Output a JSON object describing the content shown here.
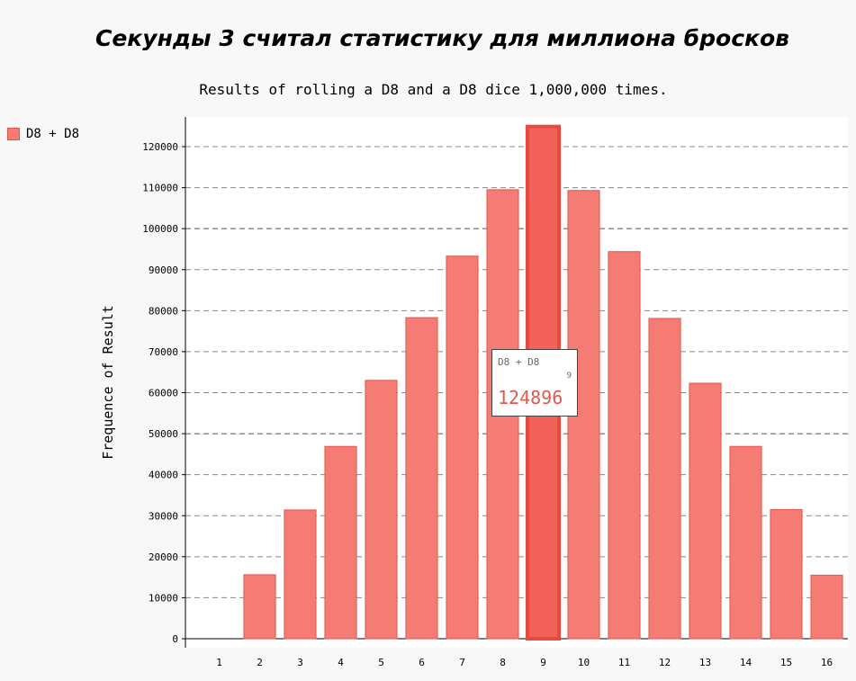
{
  "chart_data": {
    "type": "bar",
    "title": "Секунды 3 считал статистику для миллиона бросков",
    "subtitle": "Results of rolling a D8 and a D8 dice 1,000,000 times.",
    "xlabel": "",
    "ylabel": "Frequence of Result",
    "categories": [
      "1",
      "2",
      "3",
      "4",
      "5",
      "6",
      "7",
      "8",
      "9",
      "10",
      "11",
      "12",
      "13",
      "14",
      "15",
      "16"
    ],
    "series": [
      {
        "name": "D8 + D8",
        "values": [
          0,
          15600,
          31400,
          46900,
          63000,
          78300,
          93300,
          109500,
          124896,
          109300,
          94400,
          78100,
          62300,
          46900,
          31500,
          15500
        ]
      }
    ],
    "y_ticks": [
      0,
      10000,
      20000,
      30000,
      40000,
      50000,
      60000,
      70000,
      80000,
      90000,
      100000,
      110000,
      120000
    ],
    "ylim": [
      0,
      125000
    ],
    "grid": "horizontal dashed",
    "legend": "top-left",
    "highlight_index": 8,
    "colors": {
      "bar": "#f47c74",
      "bar_stroke": "#e2574c",
      "highlight": "#f2625a",
      "highlight_stroke": "#e84a40"
    }
  },
  "tooltip": {
    "series": "D8 + D8",
    "x": "9",
    "value": "124896"
  }
}
